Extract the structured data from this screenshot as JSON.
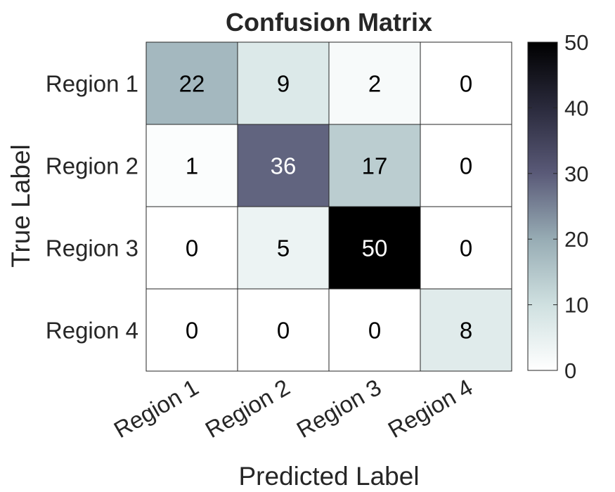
{
  "chart_data": {
    "type": "heatmap",
    "title": "Confusion Matrix",
    "xlabel": "Predicted Label",
    "ylabel": "True Label",
    "x_categories": [
      "Region 1",
      "Region 2",
      "Region 3",
      "Region 4"
    ],
    "y_categories": [
      "Region 1",
      "Region 2",
      "Region 3",
      "Region 4"
    ],
    "values": [
      [
        22,
        9,
        2,
        0
      ],
      [
        1,
        36,
        17,
        0
      ],
      [
        0,
        5,
        50,
        0
      ],
      [
        0,
        0,
        0,
        8
      ]
    ],
    "colorbar": {
      "range": [
        0,
        50
      ],
      "ticks": [
        0,
        10,
        20,
        30,
        40,
        50
      ],
      "colormap": "bone (reversed)",
      "colors": [
        "#ffffff",
        "#cfe0e0",
        "#97acb4",
        "#5a5a78",
        "#000000"
      ]
    },
    "grid": true,
    "legend": "colorbar-right"
  }
}
